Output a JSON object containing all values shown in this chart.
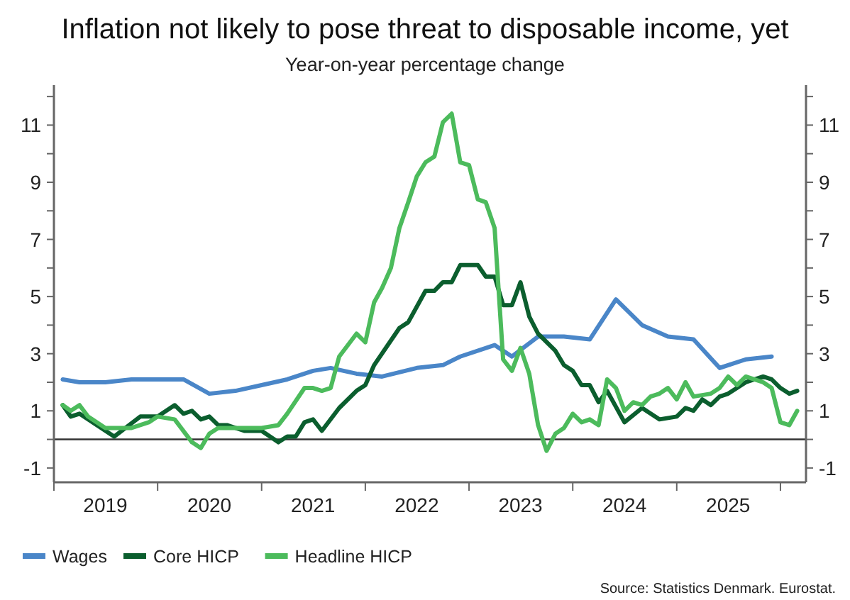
{
  "chart_data": {
    "type": "line",
    "title": "Inflation not likely to pose threat to disposable income, yet",
    "subtitle": "Year-on-year percentage change",
    "annotations": [
      "Source: Statistics Denmark. Eurostat."
    ],
    "xlim": [
      "2019-01",
      "2026-04"
    ],
    "xticks": [
      {
        "value": "2019-01",
        "label": null
      },
      {
        "value": "2019-07",
        "label": "2019"
      },
      {
        "value": "2020-01",
        "label": null
      },
      {
        "value": "2020-07",
        "label": "2020"
      },
      {
        "value": "2021-01",
        "label": null
      },
      {
        "value": "2021-07",
        "label": "2021"
      },
      {
        "value": "2022-01",
        "label": null
      },
      {
        "value": "2022-07",
        "label": "2022"
      },
      {
        "value": "2023-01",
        "label": null
      },
      {
        "value": "2023-07",
        "label": "2023"
      },
      {
        "value": "2024-01",
        "label": null
      },
      {
        "value": "2024-07",
        "label": "2024"
      },
      {
        "value": "2025-01",
        "label": null
      },
      {
        "value": "2025-07",
        "label": "2025"
      },
      {
        "value": "2026-01",
        "label": null
      }
    ],
    "ylim": [
      -1.5,
      12.4
    ],
    "yticks": [
      -1,
      {
        "value": 0,
        "label": null
      },
      1,
      {
        "value": 2,
        "label": null
      },
      3,
      {
        "value": 4,
        "label": null
      },
      5,
      {
        "value": 6,
        "label": null
      },
      7,
      {
        "value": 8,
        "label": null
      },
      9,
      {
        "value": 10,
        "label": null
      },
      11,
      {
        "value": 12,
        "label": null
      }
    ],
    "y2lim": [
      -1.5,
      12.4
    ],
    "y2ticks": [
      -1,
      {
        "value": 0,
        "label": null
      },
      1,
      {
        "value": 2,
        "label": null
      },
      3,
      {
        "value": 4,
        "label": null
      },
      5,
      {
        "value": 6,
        "label": null
      },
      7,
      {
        "value": 8,
        "label": null
      },
      9,
      {
        "value": 10,
        "label": null
      },
      11,
      {
        "value": 12,
        "label": null
      }
    ],
    "ref_lines": [
      {
        "axis": "y",
        "value": 0,
        "color": "#333333"
      }
    ],
    "legend": "bottom",
    "grid": false,
    "line_style": "solid",
    "series": [
      {
        "name": "Wages",
        "color": "#4a86c8",
        "x": [
          "2019-02",
          "2019-04",
          "2019-07",
          "2019-10",
          "2020-01",
          "2020-04",
          "2020-07",
          "2020-10",
          "2021-01",
          "2021-04",
          "2021-07",
          "2021-09",
          "2021-12",
          "2022-03",
          "2022-07",
          "2022-10",
          "2022-12",
          "2023-04",
          "2023-06",
          "2023-09",
          "2023-12",
          "2024-03",
          "2024-06",
          "2024-09",
          "2024-12",
          "2025-03",
          "2025-06",
          "2025-09",
          "2025-12"
        ],
        "values": [
          2.1,
          2.0,
          2.0,
          2.1,
          2.1,
          2.1,
          1.6,
          1.7,
          1.9,
          2.1,
          2.4,
          2.5,
          2.3,
          2.2,
          2.5,
          2.6,
          2.9,
          3.3,
          2.9,
          3.6,
          3.6,
          3.5,
          4.9,
          4.0,
          3.6,
          3.5,
          2.5,
          2.8,
          2.9
        ]
      },
      {
        "name": "Core HICP",
        "color": "#0b5e2e",
        "x": [
          "2019-02",
          "2019-03",
          "2019-04",
          "2019-08",
          "2019-11",
          "2020-01",
          "2020-03",
          "2020-04",
          "2020-05",
          "2020-06",
          "2020-07",
          "2020-08",
          "2020-09",
          "2020-11",
          "2021-01",
          "2021-03",
          "2021-04",
          "2021-05",
          "2021-06",
          "2021-07",
          "2021-08",
          "2021-10",
          "2021-12",
          "2022-01",
          "2022-02",
          "2022-05",
          "2022-06",
          "2022-08",
          "2022-09",
          "2022-10",
          "2022-11",
          "2022-12",
          "2023-02",
          "2023-03",
          "2023-04",
          "2023-05",
          "2023-06",
          "2023-07",
          "2023-08",
          "2023-09",
          "2023-11",
          "2023-12",
          "2024-01",
          "2024-02",
          "2024-03",
          "2024-04",
          "2024-05",
          "2024-07",
          "2024-09",
          "2024-11",
          "2025-01",
          "2025-02",
          "2025-03",
          "2025-04",
          "2025-05",
          "2025-06",
          "2025-07",
          "2025-08",
          "2025-09",
          "2025-11",
          "2025-12",
          "2026-01",
          "2026-02",
          "2026-03"
        ],
        "values": [
          1.2,
          0.8,
          0.9,
          0.1,
          0.8,
          0.8,
          1.2,
          0.9,
          1.0,
          0.7,
          0.8,
          0.5,
          0.5,
          0.3,
          0.3,
          -0.1,
          0.1,
          0.1,
          0.6,
          0.7,
          0.3,
          1.1,
          1.7,
          1.9,
          2.6,
          3.9,
          4.1,
          5.2,
          5.2,
          5.5,
          5.5,
          6.1,
          6.1,
          5.7,
          5.7,
          4.7,
          4.7,
          5.5,
          4.3,
          3.7,
          3.1,
          2.6,
          2.4,
          1.9,
          1.9,
          1.3,
          1.7,
          0.6,
          1.1,
          0.7,
          0.8,
          1.1,
          1.0,
          1.4,
          1.2,
          1.5,
          1.6,
          1.8,
          2.0,
          2.2,
          2.1,
          1.8,
          1.6,
          1.7
        ]
      },
      {
        "name": "Headline HICP",
        "color": "#4cbb5c",
        "x": [
          "2019-02",
          "2019-03",
          "2019-04",
          "2019-05",
          "2019-07",
          "2019-10",
          "2019-12",
          "2020-01",
          "2020-03",
          "2020-05",
          "2020-06",
          "2020-07",
          "2020-08",
          "2020-09",
          "2020-11",
          "2020-12",
          "2021-01",
          "2021-03",
          "2021-04",
          "2021-06",
          "2021-07",
          "2021-08",
          "2021-09",
          "2021-10",
          "2021-12",
          "2022-01",
          "2022-02",
          "2022-03",
          "2022-04",
          "2022-05",
          "2022-06",
          "2022-07",
          "2022-08",
          "2022-09",
          "2022-10",
          "2022-11",
          "2022-12",
          "2023-01",
          "2023-02",
          "2023-03",
          "2023-04",
          "2023-05",
          "2023-06",
          "2023-07",
          "2023-08",
          "2023-09",
          "2023-10",
          "2023-11",
          "2023-12",
          "2024-01",
          "2024-02",
          "2024-03",
          "2024-04",
          "2024-05",
          "2024-06",
          "2024-07",
          "2024-08",
          "2024-09",
          "2024-10",
          "2024-11",
          "2024-12",
          "2025-01",
          "2025-02",
          "2025-03",
          "2025-05",
          "2025-06",
          "2025-07",
          "2025-08",
          "2025-09",
          "2025-10",
          "2025-11",
          "2025-12",
          "2026-01",
          "2026-02",
          "2026-03"
        ],
        "values": [
          1.2,
          1.0,
          1.2,
          0.8,
          0.4,
          0.4,
          0.6,
          0.8,
          0.7,
          -0.1,
          -0.3,
          0.2,
          0.4,
          0.4,
          0.4,
          0.4,
          0.4,
          0.5,
          0.9,
          1.8,
          1.8,
          1.7,
          1.8,
          2.9,
          3.7,
          3.4,
          4.8,
          5.3,
          6.0,
          7.4,
          8.3,
          9.2,
          9.7,
          9.9,
          11.1,
          11.4,
          9.7,
          9.6,
          8.4,
          8.3,
          7.4,
          2.8,
          2.4,
          3.2,
          2.3,
          0.5,
          -0.4,
          0.2,
          0.4,
          0.9,
          0.6,
          0.7,
          0.5,
          2.1,
          1.8,
          1.0,
          1.3,
          1.2,
          1.5,
          1.6,
          1.8,
          1.4,
          2.0,
          1.5,
          1.6,
          1.8,
          2.2,
          1.9,
          2.2,
          2.1,
          2.0,
          1.8,
          0.6,
          0.5,
          1.0
        ]
      }
    ]
  }
}
